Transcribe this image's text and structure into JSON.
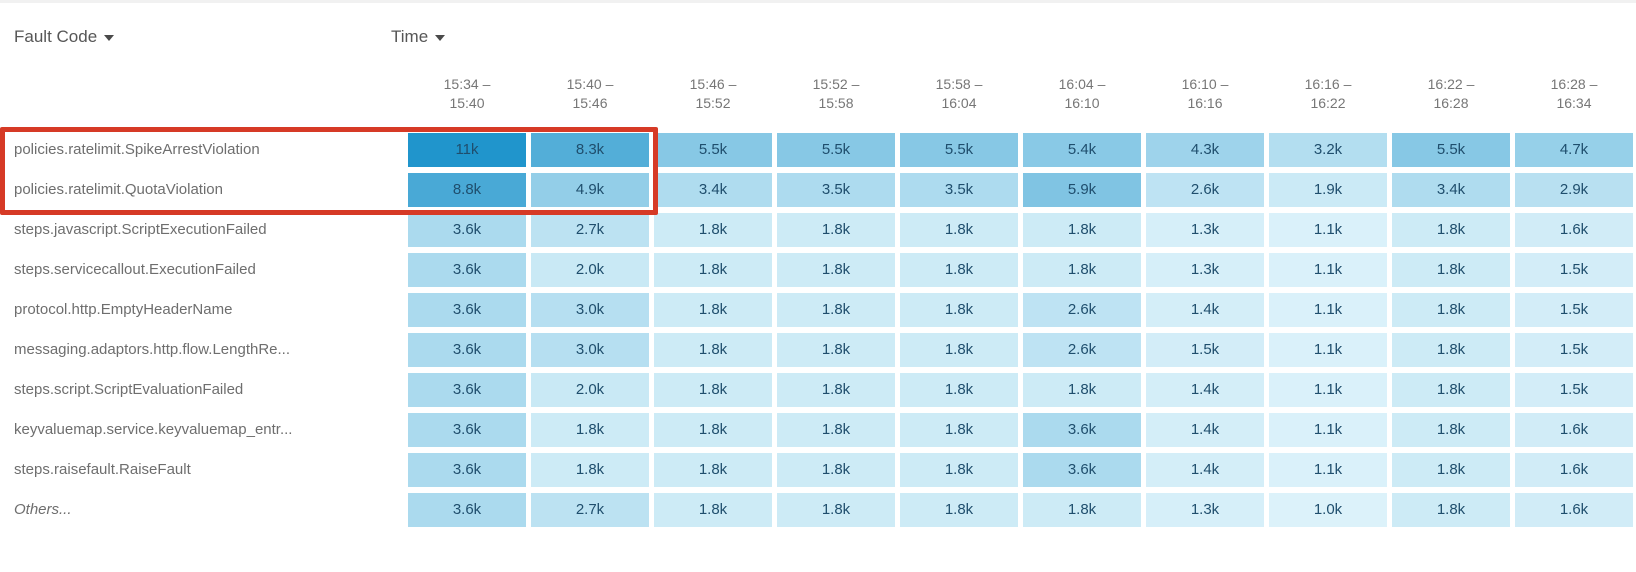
{
  "header": {
    "row_dimension_label": "Fault Code",
    "column_dimension_label": "Time"
  },
  "columns": [
    {
      "label": "15:34 –\n15:40"
    },
    {
      "label": "15:40 –\n15:46"
    },
    {
      "label": "15:46 –\n15:52"
    },
    {
      "label": "15:52 –\n15:58"
    },
    {
      "label": "15:58 –\n16:04"
    },
    {
      "label": "16:04 –\n16:10"
    },
    {
      "label": "16:10 –\n16:16"
    },
    {
      "label": "16:16 –\n16:22"
    },
    {
      "label": "16:22 –\n16:28"
    },
    {
      "label": "16:28 –\n16:34"
    }
  ],
  "rows": [
    {
      "label": "policies.ratelimit.SpikeArrestViolation",
      "italic": false,
      "values": [
        "11k",
        "8.3k",
        "5.5k",
        "5.5k",
        "5.5k",
        "5.4k",
        "4.3k",
        "3.2k",
        "5.5k",
        "4.7k"
      ]
    },
    {
      "label": "policies.ratelimit.QuotaViolation",
      "italic": false,
      "values": [
        "8.8k",
        "4.9k",
        "3.4k",
        "3.5k",
        "3.5k",
        "5.9k",
        "2.6k",
        "1.9k",
        "3.4k",
        "2.9k"
      ]
    },
    {
      "label": "steps.javascript.ScriptExecutionFailed",
      "italic": false,
      "values": [
        "3.6k",
        "2.7k",
        "1.8k",
        "1.8k",
        "1.8k",
        "1.8k",
        "1.3k",
        "1.1k",
        "1.8k",
        "1.6k"
      ]
    },
    {
      "label": "steps.servicecallout.ExecutionFailed",
      "italic": false,
      "values": [
        "3.6k",
        "2.0k",
        "1.8k",
        "1.8k",
        "1.8k",
        "1.8k",
        "1.3k",
        "1.1k",
        "1.8k",
        "1.5k"
      ]
    },
    {
      "label": "protocol.http.EmptyHeaderName",
      "italic": false,
      "values": [
        "3.6k",
        "3.0k",
        "1.8k",
        "1.8k",
        "1.8k",
        "2.6k",
        "1.4k",
        "1.1k",
        "1.8k",
        "1.5k"
      ]
    },
    {
      "label": "messaging.adaptors.http.flow.LengthRe...",
      "italic": false,
      "values": [
        "3.6k",
        "3.0k",
        "1.8k",
        "1.8k",
        "1.8k",
        "2.6k",
        "1.5k",
        "1.1k",
        "1.8k",
        "1.5k"
      ]
    },
    {
      "label": "steps.script.ScriptEvaluationFailed",
      "italic": false,
      "values": [
        "3.6k",
        "2.0k",
        "1.8k",
        "1.8k",
        "1.8k",
        "1.8k",
        "1.4k",
        "1.1k",
        "1.8k",
        "1.5k"
      ]
    },
    {
      "label": "keyvaluemap.service.keyvaluemap_entr...",
      "italic": false,
      "values": [
        "3.6k",
        "1.8k",
        "1.8k",
        "1.8k",
        "1.8k",
        "3.6k",
        "1.4k",
        "1.1k",
        "1.8k",
        "1.6k"
      ]
    },
    {
      "label": "steps.raisefault.RaiseFault",
      "italic": false,
      "values": [
        "3.6k",
        "1.8k",
        "1.8k",
        "1.8k",
        "1.8k",
        "3.6k",
        "1.4k",
        "1.1k",
        "1.8k",
        "1.6k"
      ]
    },
    {
      "label": "Others...",
      "italic": true,
      "values": [
        "3.6k",
        "2.7k",
        "1.8k",
        "1.8k",
        "1.8k",
        "1.8k",
        "1.3k",
        "1.0k",
        "1.8k",
        "1.6k"
      ]
    }
  ],
  "colors": {
    "dimension_text": "#565656",
    "time_header_text": "#767676",
    "row_label_text": "#6e6e6e",
    "cell_text": "#1f4e6d",
    "highlight": "#d63a26",
    "heat_min": "#dcf2fa",
    "heat_max": "#2095cc"
  },
  "chart_data": {
    "type": "heatmap",
    "title": "Fault Code by Time heatmap",
    "row_dimension": "Fault Code",
    "column_dimension": "Time",
    "rows": [
      "policies.ratelimit.SpikeArrestViolation",
      "policies.ratelimit.QuotaViolation",
      "steps.javascript.ScriptExecutionFailed",
      "steps.servicecallout.ExecutionFailed",
      "protocol.http.EmptyHeaderName",
      "messaging.adaptors.http.flow.LengthRe...",
      "steps.script.ScriptEvaluationFailed",
      "keyvaluemap.service.keyvaluemap_entr...",
      "steps.raisefault.RaiseFault",
      "Others..."
    ],
    "columns": [
      "15:34 – 15:40",
      "15:40 – 15:46",
      "15:46 – 15:52",
      "15:52 – 15:58",
      "15:58 – 16:04",
      "16:04 – 16:10",
      "16:10 – 16:16",
      "16:16 – 16:22",
      "16:22 – 16:28",
      "16:28 – 16:34"
    ],
    "values": [
      [
        11000,
        8300,
        5500,
        5500,
        5500,
        5400,
        4300,
        3200,
        5500,
        4700
      ],
      [
        8800,
        4900,
        3400,
        3500,
        3500,
        5900,
        2600,
        1900,
        3400,
        2900
      ],
      [
        3600,
        2700,
        1800,
        1800,
        1800,
        1800,
        1300,
        1100,
        1800,
        1600
      ],
      [
        3600,
        2000,
        1800,
        1800,
        1800,
        1800,
        1300,
        1100,
        1800,
        1500
      ],
      [
        3600,
        3000,
        1800,
        1800,
        1800,
        2600,
        1400,
        1100,
        1800,
        1500
      ],
      [
        3600,
        3000,
        1800,
        1800,
        1800,
        2600,
        1500,
        1100,
        1800,
        1500
      ],
      [
        3600,
        2000,
        1800,
        1800,
        1800,
        1800,
        1400,
        1100,
        1800,
        1500
      ],
      [
        3600,
        1800,
        1800,
        1800,
        1800,
        3600,
        1400,
        1100,
        1800,
        1600
      ],
      [
        3600,
        1800,
        1800,
        1800,
        1800,
        3600,
        1400,
        1100,
        1800,
        1600
      ],
      [
        3600,
        2700,
        1800,
        1800,
        1800,
        1800,
        1300,
        1000,
        1800,
        1600
      ]
    ],
    "display_values": [
      [
        "11k",
        "8.3k",
        "5.5k",
        "5.5k",
        "5.5k",
        "5.4k",
        "4.3k",
        "3.2k",
        "5.5k",
        "4.7k"
      ],
      [
        "8.8k",
        "4.9k",
        "3.4k",
        "3.5k",
        "3.5k",
        "5.9k",
        "2.6k",
        "1.9k",
        "3.4k",
        "2.9k"
      ],
      [
        "3.6k",
        "2.7k",
        "1.8k",
        "1.8k",
        "1.8k",
        "1.8k",
        "1.3k",
        "1.1k",
        "1.8k",
        "1.6k"
      ],
      [
        "3.6k",
        "2.0k",
        "1.8k",
        "1.8k",
        "1.8k",
        "1.8k",
        "1.3k",
        "1.1k",
        "1.8k",
        "1.5k"
      ],
      [
        "3.6k",
        "3.0k",
        "1.8k",
        "1.8k",
        "1.8k",
        "2.6k",
        "1.4k",
        "1.1k",
        "1.8k",
        "1.5k"
      ],
      [
        "3.6k",
        "3.0k",
        "1.8k",
        "1.8k",
        "1.8k",
        "2.6k",
        "1.5k",
        "1.1k",
        "1.8k",
        "1.5k"
      ],
      [
        "3.6k",
        "2.0k",
        "1.8k",
        "1.8k",
        "1.8k",
        "1.8k",
        "1.4k",
        "1.1k",
        "1.8k",
        "1.5k"
      ],
      [
        "3.6k",
        "1.8k",
        "1.8k",
        "1.8k",
        "1.8k",
        "3.6k",
        "1.4k",
        "1.1k",
        "1.8k",
        "1.6k"
      ],
      [
        "3.6k",
        "1.8k",
        "1.8k",
        "1.8k",
        "1.8k",
        "3.6k",
        "1.4k",
        "1.1k",
        "1.8k",
        "1.6k"
      ],
      [
        "3.6k",
        "2.7k",
        "1.8k",
        "1.8k",
        "1.8k",
        "1.8k",
        "1.3k",
        "1.0k",
        "1.8k",
        "1.6k"
      ]
    ],
    "color_scale": {
      "min": 1000,
      "max": 11000,
      "min_color": "#dcf2fa",
      "max_color": "#2095cc"
    },
    "highlight": {
      "rows": [
        0,
        1
      ],
      "columns": [
        0,
        1
      ],
      "border_color": "#d63a26"
    },
    "legend": "off",
    "grid": "off"
  }
}
